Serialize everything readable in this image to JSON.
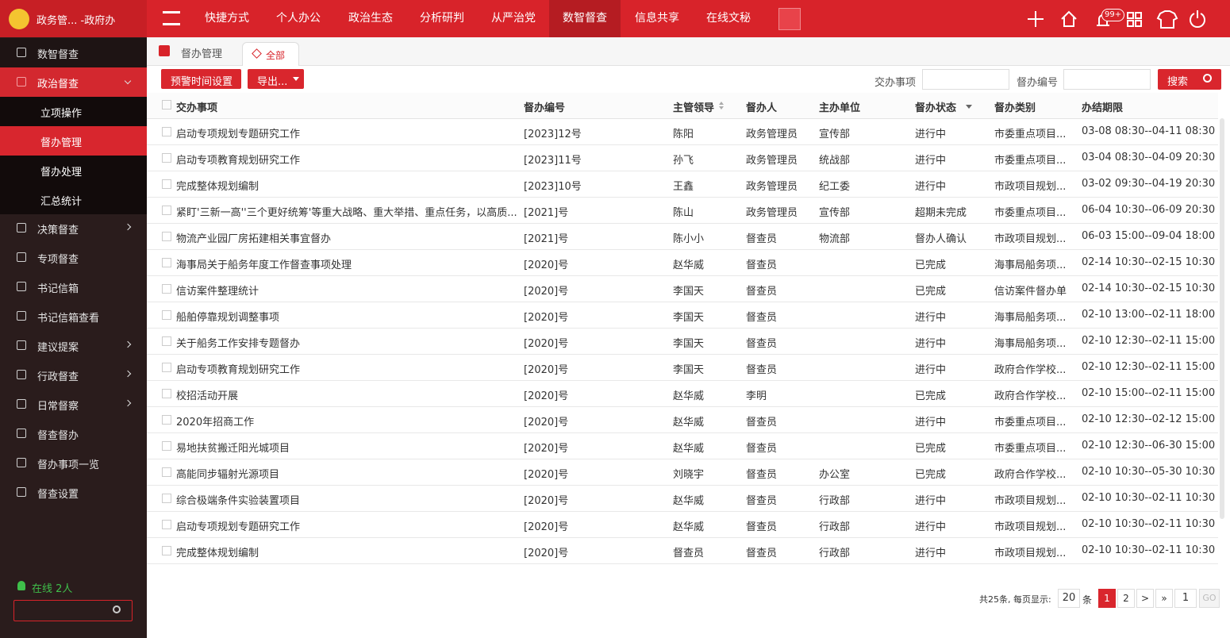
{
  "header": {
    "app_title": "政务管... -政府办",
    "nav": [
      "快捷方式",
      "个人办公",
      "政治生态",
      "分析研判",
      "从严治党",
      "数智督查",
      "信息共享",
      "在线文秘"
    ],
    "active_nav": 5,
    "badge": "99+"
  },
  "sidebar": {
    "items": [
      {
        "label": "数智督查"
      },
      {
        "label": "政治督查",
        "expanded": true,
        "children": [
          "立项操作",
          "督办管理",
          "督办处理",
          "汇总统计"
        ],
        "active_child": 1
      },
      {
        "label": "决策督查",
        "arrow": true
      },
      {
        "label": "专项督查"
      },
      {
        "label": "书记信箱"
      },
      {
        "label": "书记信箱查看"
      },
      {
        "label": "建议提案",
        "arrow": true
      },
      {
        "label": "行政督查",
        "arrow": true
      },
      {
        "label": "日常督察",
        "arrow": true
      },
      {
        "label": "督查督办"
      },
      {
        "label": "督办事项一览"
      },
      {
        "label": "督查设置"
      }
    ],
    "online": "在线 2人"
  },
  "tabs": [
    "督办管理",
    "全部"
  ],
  "toolbar": {
    "buttons": [
      "预警时间设置",
      "导出..."
    ],
    "search_labels": [
      "交办事项",
      "督办编号"
    ],
    "search_button": "搜索"
  },
  "table": {
    "columns": [
      "交办事项",
      "督办编号",
      "主管领导",
      "督办人",
      "主办单位",
      "督办状态",
      "督办类别",
      "办结期限"
    ],
    "rows": [
      [
        "启动专项规划专题研究工作",
        "[2023]12号",
        "陈阳",
        "政务管理员",
        "宣传部",
        "进行中",
        "市委重点项目...",
        "03-08 08:30--04-11 08:30"
      ],
      [
        "启动专项教育规划研究工作",
        "[2023]11号",
        "孙飞",
        "政务管理员",
        "统战部",
        "进行中",
        "市委重点项目...",
        "03-04 08:30--04-09 20:30"
      ],
      [
        "完成整体规划编制",
        "[2023]10号",
        "王鑫",
        "政务管理员",
        "纪工委",
        "进行中",
        "市政项目规划...",
        "03-02 09:30--04-19 20:30"
      ],
      [
        "紧盯'三新一高''三个更好统筹'等重大战略、重大举措、重点任务，以高质...",
        "[2021]号",
        "陈山",
        "政务管理员",
        "宣传部",
        "超期未完成",
        "市委重点项目...",
        "06-04 10:30--06-09 20:30"
      ],
      [
        "物流产业园厂房拓建相关事宜督办",
        "[2021]号",
        "陈小小",
        "督查员",
        "物流部",
        "督办人确认",
        "市政项目规划...",
        "06-03 15:00--09-04 18:00"
      ],
      [
        "海事局关于船务年度工作督查事项处理",
        "[2020]号",
        "赵华威",
        "督查员",
        null,
        "已完成",
        "海事局船务项...",
        "02-14 10:30--02-15 10:30"
      ],
      [
        "信访案件整理统计",
        "[2020]号",
        "李国天",
        "督查员",
        null,
        "已完成",
        "信访案件督办单",
        "02-14 10:30--02-15 10:30"
      ],
      [
        "船舶停靠规划调整事项",
        "[2020]号",
        "李国天",
        "督查员",
        null,
        "进行中",
        "海事局船务项...",
        "02-10 13:00--02-11 18:00"
      ],
      [
        "关于船务工作安排专题督办",
        "[2020]号",
        "李国天",
        "督查员",
        null,
        "进行中",
        "海事局船务项...",
        "02-10 12:30--02-11 15:00"
      ],
      [
        "启动专项教育规划研究工作",
        "[2020]号",
        "李国天",
        "督查员",
        null,
        "进行中",
        "政府合作学校...",
        "02-10 12:30--02-11 15:00"
      ],
      [
        "校招活动开展",
        "[2020]号",
        "赵华威",
        "李明",
        null,
        "已完成",
        "政府合作学校...",
        "02-10 15:00--02-11 15:00"
      ],
      [
        "2020年招商工作",
        "[2020]号",
        "赵华威",
        "督查员",
        null,
        "进行中",
        "市委重点项目...",
        "02-10 12:30--02-12 15:00"
      ],
      [
        "易地扶贫搬迁阳光城项目",
        "[2020]号",
        "赵华威",
        "督查员",
        null,
        "已完成",
        "市委重点项目...",
        "02-10 12:30--06-30 15:00"
      ],
      [
        "高能同步辐射光源项目",
        "[2020]号",
        "刘晓宇",
        "督查员",
        "办公室",
        "已完成",
        "政府合作学校...",
        "02-10 10:30--05-30 10:30"
      ],
      [
        "综合极端条件实验装置项目",
        "[2020]号",
        "赵华威",
        "督查员",
        "行政部",
        "进行中",
        "市政项目规划...",
        "02-10 10:30--02-11 10:30"
      ],
      [
        "启动专项规划专题研究工作",
        "[2020]号",
        "赵华威",
        "督查员",
        "行政部",
        "进行中",
        "市政项目规划...",
        "02-10 10:30--02-11 10:30"
      ],
      [
        "完成整体规划编制",
        "[2020]号",
        "督查员",
        "督查员",
        "行政部",
        "进行中",
        "市政项目规划...",
        "02-10 10:30--02-11 10:30"
      ]
    ]
  },
  "pagination": {
    "summary": "共25条, 每页显示:",
    "page_size": "20",
    "unit": "条",
    "pages": [
      "1",
      "2",
      ">",
      "»"
    ],
    "current": 0,
    "jump": "1",
    "go": "GO"
  }
}
